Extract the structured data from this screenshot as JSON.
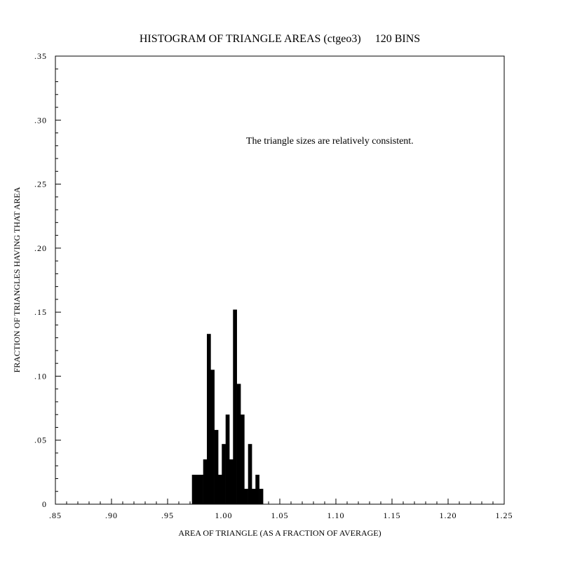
{
  "chart_data": {
    "type": "bar",
    "title": "HISTOGRAM OF TRIANGLE AREAS (ctgeo3)     120 BINS",
    "xlabel": "AREA OF TRIANGLE (AS A FRACTION OF AVERAGE)",
    "ylabel": "FRACTION OF TRIANGLES HAVING THAT AREA",
    "annotation": "The triangle sizes are relatively consistent.",
    "xlim": [
      0.85,
      1.25
    ],
    "ylim": [
      0,
      0.35
    ],
    "bin_width": 0.0033,
    "x_ticks": [
      0.85,
      0.9,
      0.95,
      1.0,
      1.05,
      1.1,
      1.15,
      1.2,
      1.25
    ],
    "x_tick_labels": [
      ".85",
      ".90",
      ".95",
      "1.00",
      "1.05",
      "1.10",
      "1.15",
      "1.20",
      "1.25"
    ],
    "y_ticks": [
      0,
      0.05,
      0.1,
      0.15,
      0.2,
      0.25,
      0.3,
      0.35
    ],
    "y_tick_labels": [
      "0",
      ".05",
      ".10",
      ".15",
      ".20",
      ".25",
      ".30",
      ".35"
    ],
    "bins": [
      {
        "x": 0.9717,
        "value": 0.023
      },
      {
        "x": 0.975,
        "value": 0.023
      },
      {
        "x": 0.9783,
        "value": 0.023
      },
      {
        "x": 0.9817,
        "value": 0.035
      },
      {
        "x": 0.985,
        "value": 0.133
      },
      {
        "x": 0.9883,
        "value": 0.105
      },
      {
        "x": 0.9917,
        "value": 0.058
      },
      {
        "x": 0.995,
        "value": 0.023
      },
      {
        "x": 0.9983,
        "value": 0.047
      },
      {
        "x": 1.0017,
        "value": 0.07
      },
      {
        "x": 1.005,
        "value": 0.035
      },
      {
        "x": 1.0083,
        "value": 0.152
      },
      {
        "x": 1.0117,
        "value": 0.094
      },
      {
        "x": 1.015,
        "value": 0.07
      },
      {
        "x": 1.0183,
        "value": 0.012
      },
      {
        "x": 1.0217,
        "value": 0.047
      },
      {
        "x": 1.025,
        "value": 0.012
      },
      {
        "x": 1.0283,
        "value": 0.023
      },
      {
        "x": 1.0317,
        "value": 0.012
      }
    ],
    "grid": false,
    "bar_color": "#000000"
  }
}
